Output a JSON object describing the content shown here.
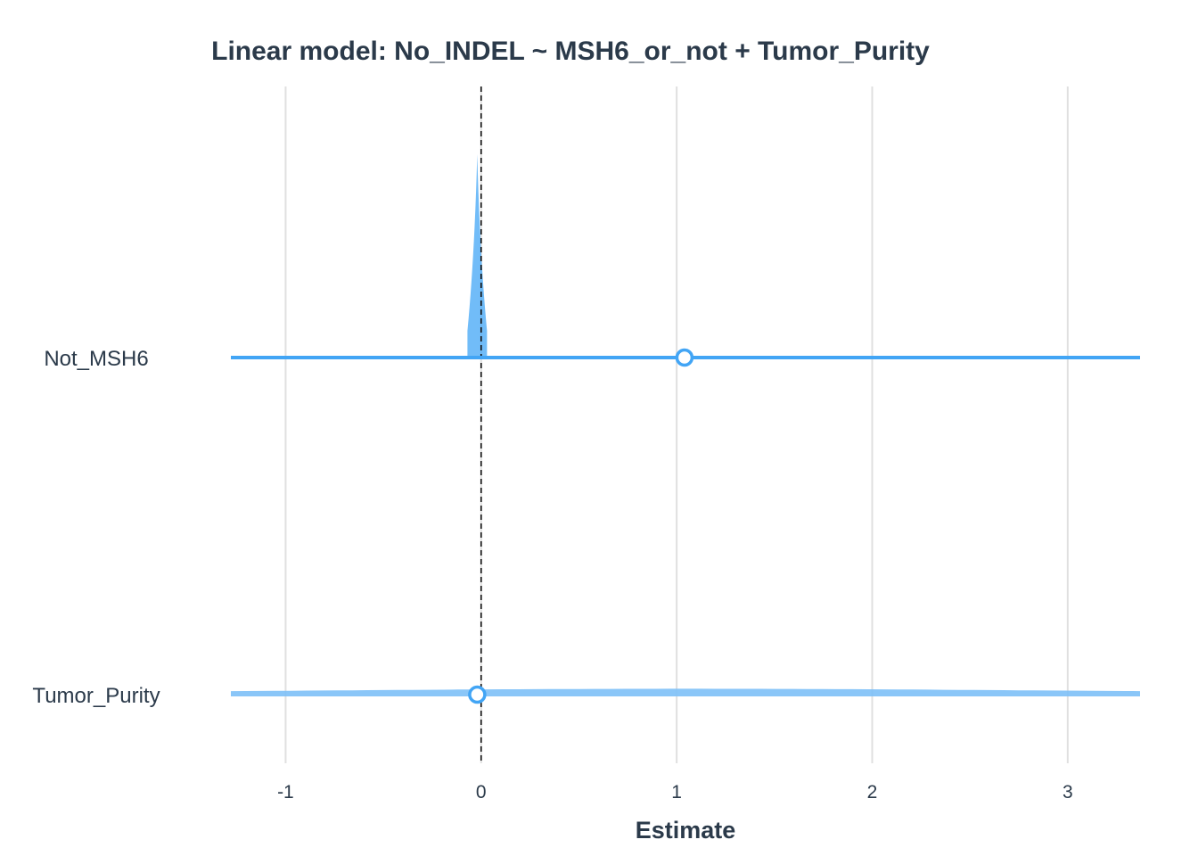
{
  "chart_data": {
    "type": "forest",
    "title": "Linear model: No_INDEL ~ MSH6_or_not + Tumor_Purity",
    "xlabel": "Estimate",
    "ylabel": "",
    "xlim": [
      -1.28,
      3.37
    ],
    "x_ticks": [
      "-1",
      "0",
      "1",
      "2",
      "3"
    ],
    "x_tick_values": [
      -1,
      0,
      1,
      2,
      3
    ],
    "reference_line": 0,
    "grid": "vertical major",
    "colors": {
      "not_msh6": "#42a5f5",
      "tumor_purity": "#7dc0f7",
      "grid": "#e0e0e0",
      "text": "#2b3a4a"
    },
    "terms": [
      {
        "name": "Not_MSH6",
        "estimate": 1.04,
        "ci_low": -1.28,
        "ci_high": 3.37,
        "distribution_center": -0.02,
        "distribution_halfwidth": 0.05,
        "distribution_peak": 1.0
      },
      {
        "name": "Tumor_Purity",
        "estimate": -0.02,
        "ci_low": -1.28,
        "ci_high": 3.37,
        "distribution_center": 1.05,
        "distribution_halfwidth": 2.6,
        "distribution_peak": 0.02
      }
    ]
  }
}
